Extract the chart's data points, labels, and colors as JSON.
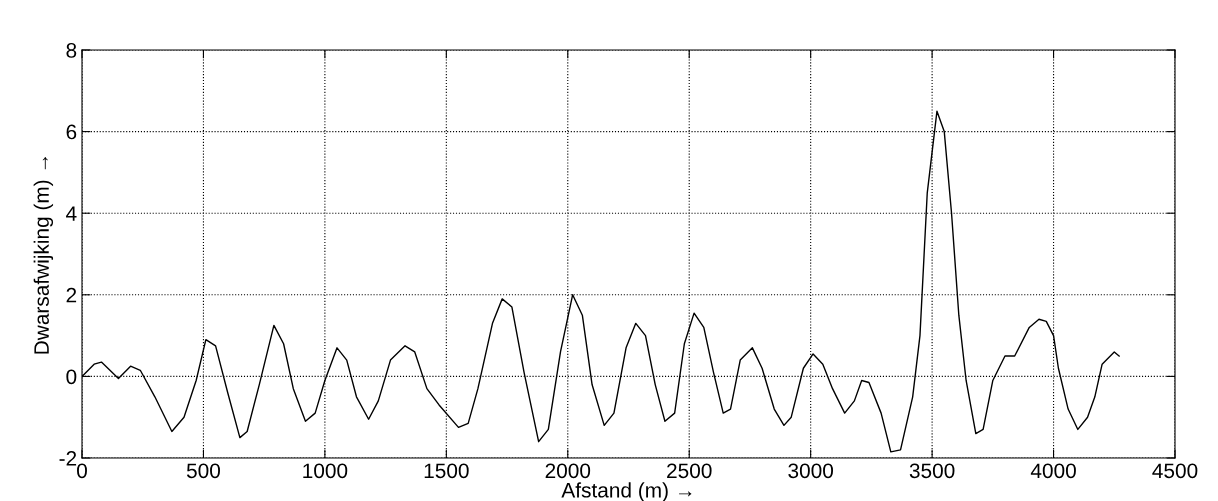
{
  "chart_data": {
    "type": "line",
    "xlabel": "Afstand (m) →",
    "ylabel": "Dwarsafwijking (m) →",
    "xlim": [
      0,
      4500
    ],
    "xticks": [
      0,
      500,
      1000,
      1500,
      2000,
      2500,
      3000,
      3500,
      4000,
      4500
    ],
    "ylim": [
      -2,
      8
    ],
    "yticks": [
      -2,
      0,
      2,
      4,
      6,
      8
    ],
    "grid": true,
    "series": [
      {
        "color": "#000000",
        "x": [
          0,
          50,
          80,
          150,
          200,
          240,
          300,
          370,
          420,
          470,
          510,
          550,
          600,
          650,
          680,
          730,
          790,
          830,
          870,
          920,
          960,
          1000,
          1050,
          1090,
          1130,
          1180,
          1220,
          1270,
          1330,
          1370,
          1420,
          1470,
          1550,
          1590,
          1630,
          1690,
          1730,
          1770,
          1820,
          1880,
          1920,
          1970,
          2020,
          2060,
          2100,
          2150,
          2190,
          2240,
          2280,
          2320,
          2360,
          2400,
          2440,
          2480,
          2520,
          2560,
          2600,
          2640,
          2670,
          2710,
          2760,
          2800,
          2850,
          2890,
          2920,
          2970,
          3010,
          3050,
          3090,
          3140,
          3180,
          3210,
          3240,
          3290,
          3330,
          3370,
          3420,
          3450,
          3480,
          3520,
          3550,
          3580,
          3610,
          3640,
          3680,
          3710,
          3750,
          3800,
          3840,
          3900,
          3940,
          3970,
          4000,
          4020,
          4060,
          4100,
          4140,
          4170,
          4200,
          4250,
          4270
        ],
        "values": [
          0,
          0.3,
          0.35,
          -0.05,
          0.25,
          0.15,
          -0.5,
          -1.35,
          -1.0,
          -0.1,
          0.9,
          0.75,
          -0.4,
          -1.5,
          -1.35,
          -0.2,
          1.25,
          0.8,
          -0.3,
          -1.1,
          -0.9,
          -0.1,
          0.7,
          0.4,
          -0.5,
          -1.05,
          -0.6,
          0.4,
          0.75,
          0.6,
          -0.3,
          -0.7,
          -1.25,
          -1.15,
          -0.3,
          1.3,
          1.9,
          1.7,
          0.1,
          -1.6,
          -1.3,
          0.6,
          2.0,
          1.5,
          -0.2,
          -1.2,
          -0.9,
          0.7,
          1.3,
          1.0,
          -0.2,
          -1.1,
          -0.9,
          0.8,
          1.55,
          1.2,
          0.1,
          -0.9,
          -0.8,
          0.4,
          0.7,
          0.2,
          -0.8,
          -1.2,
          -1.0,
          0.2,
          0.55,
          0.3,
          -0.3,
          -0.9,
          -0.6,
          -0.1,
          -0.15,
          -0.9,
          -1.85,
          -1.8,
          -0.5,
          1.0,
          4.5,
          6.5,
          6.0,
          4.0,
          1.5,
          -0.1,
          -1.4,
          -1.3,
          -0.1,
          0.5,
          0.5,
          1.2,
          1.4,
          1.35,
          1.0,
          0.2,
          -0.8,
          -1.3,
          -1.0,
          -0.5,
          0.3,
          0.6,
          0.5
        ]
      }
    ]
  }
}
